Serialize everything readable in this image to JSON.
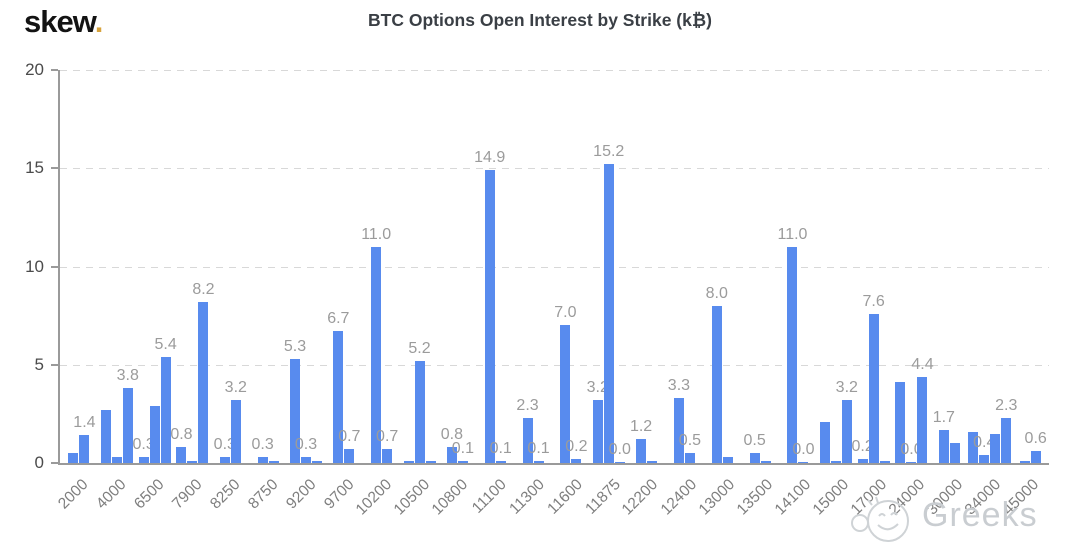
{
  "header": {
    "logo_text": "skew",
    "logo_dot": ".",
    "title": "BTC Options Open Interest by Strike (k₿)"
  },
  "watermark": {
    "text": "Greeks",
    "icon": "smiley-emoji"
  },
  "colors": {
    "bar": "#588bee",
    "grid": "#d8d8d8",
    "axis": "#9a9a9a",
    "value_label": "#9b9b9b",
    "x_tick_label": "#7e7e7e",
    "y_tick_label": "#4b4b4b",
    "title": "#3a3f45",
    "logo_dot": "#d7a33c",
    "watermark": "#c9cdd1"
  },
  "chart_data": {
    "type": "bar",
    "title": "BTC Options Open Interest by Strike (k₿)",
    "ylim": [
      0,
      20
    ],
    "yticks": [
      0,
      5,
      10,
      15,
      20
    ],
    "grid": "horizontal-dashed",
    "legend": "none",
    "categories": [
      "2000",
      "4000",
      "6500",
      "7900",
      "8250",
      "8750",
      "9200",
      "9700",
      "10200",
      "10500",
      "10800",
      "11100",
      "11300",
      "11600",
      "11875",
      "12200",
      "12400",
      "13000",
      "13500",
      "14100",
      "15000",
      "17000",
      "24000",
      "30000",
      "34000",
      "45000"
    ],
    "groups": [
      {
        "strike": "2000",
        "bars": [
          {
            "value": 0.5
          },
          {
            "value": 1.4,
            "label": "1.4"
          }
        ]
      },
      {
        "strike": "4000",
        "bars": [
          {
            "value": 2.7
          },
          {
            "value": 0.3
          },
          {
            "value": 3.8,
            "label": "3.8"
          }
        ]
      },
      {
        "strike": "6500",
        "bars": [
          {
            "value": 0.3,
            "label": "0.3"
          },
          {
            "value": 2.9
          },
          {
            "value": 5.4,
            "label": "5.4"
          }
        ]
      },
      {
        "strike": "7900",
        "bars": [
          {
            "value": 0.8,
            "label": "0.8"
          },
          {
            "value": 0.1
          },
          {
            "value": 8.2,
            "label": "8.2"
          }
        ]
      },
      {
        "strike": "8250",
        "bars": [
          {
            "value": 0.3,
            "label": "0.3"
          },
          {
            "value": 3.2,
            "label": "3.2"
          }
        ]
      },
      {
        "strike": "8750",
        "bars": [
          {
            "value": 0.3,
            "label": "0.3"
          },
          {
            "value": 0.1
          }
        ]
      },
      {
        "strike": "9200",
        "bars": [
          {
            "value": 5.3,
            "label": "5.3"
          },
          {
            "value": 0.3,
            "label": "0.3"
          },
          {
            "value": 0.1
          }
        ]
      },
      {
        "strike": "9700",
        "bars": [
          {
            "value": 6.7,
            "label": "6.7"
          },
          {
            "value": 0.7,
            "label": "0.7"
          }
        ]
      },
      {
        "strike": "10200",
        "bars": [
          {
            "value": 11.0,
            "label": "11.0"
          },
          {
            "value": 0.7,
            "label": "0.7"
          }
        ]
      },
      {
        "strike": "10500",
        "bars": [
          {
            "value": 0.1
          },
          {
            "value": 5.2,
            "label": "5.2"
          },
          {
            "value": 0.1
          }
        ]
      },
      {
        "strike": "10800",
        "bars": [
          {
            "value": 0.8,
            "label": "0.8"
          },
          {
            "value": 0.1,
            "label": "0.1"
          }
        ]
      },
      {
        "strike": "11100",
        "bars": [
          {
            "value": 14.9,
            "label": "14.9"
          },
          {
            "value": 0.1,
            "label": "0.1"
          }
        ]
      },
      {
        "strike": "11300",
        "bars": [
          {
            "value": 2.3,
            "label": "2.3"
          },
          {
            "value": 0.1,
            "label": "0.1"
          }
        ]
      },
      {
        "strike": "11600",
        "bars": [
          {
            "value": 7.0,
            "label": "7.0"
          },
          {
            "value": 0.2,
            "label": "0.2"
          }
        ]
      },
      {
        "strike": "11875",
        "bars": [
          {
            "value": 3.2,
            "label": "3.2"
          },
          {
            "value": 15.2,
            "label": "15.2"
          },
          {
            "value": 0.0,
            "label": "0.0"
          }
        ]
      },
      {
        "strike": "12200",
        "bars": [
          {
            "value": 1.2,
            "label": "1.2"
          },
          {
            "value": 0.1
          }
        ]
      },
      {
        "strike": "12400",
        "bars": [
          {
            "value": 3.3,
            "label": "3.3"
          },
          {
            "value": 0.5,
            "label": "0.5"
          }
        ]
      },
      {
        "strike": "13000",
        "bars": [
          {
            "value": 8.0,
            "label": "8.0"
          },
          {
            "value": 0.3
          }
        ]
      },
      {
        "strike": "13500",
        "bars": [
          {
            "value": 0.5,
            "label": "0.5"
          },
          {
            "value": 0.1
          }
        ]
      },
      {
        "strike": "14100",
        "bars": [
          {
            "value": 11.0,
            "label": "11.0"
          },
          {
            "value": 0.0,
            "label": "0.0"
          }
        ]
      },
      {
        "strike": "15000",
        "bars": [
          {
            "value": 2.1
          },
          {
            "value": 0.1
          },
          {
            "value": 3.2,
            "label": "3.2"
          }
        ]
      },
      {
        "strike": "17000",
        "bars": [
          {
            "value": 0.2,
            "label": "0.2"
          },
          {
            "value": 7.6,
            "label": "7.6"
          },
          {
            "value": 0.1
          }
        ]
      },
      {
        "strike": "24000",
        "bars": [
          {
            "value": 4.1
          },
          {
            "value": 0.0,
            "label": "0.0"
          },
          {
            "value": 4.4,
            "label": "4.4"
          }
        ]
      },
      {
        "strike": "30000",
        "bars": [
          {
            "value": 1.7,
            "label": "1.7"
          },
          {
            "value": 1.0
          }
        ]
      },
      {
        "strike": "34000",
        "bars": [
          {
            "value": 1.6
          },
          {
            "value": 0.4,
            "label": "0.4"
          },
          {
            "value": 1.5
          },
          {
            "value": 2.3,
            "label": "2.3"
          }
        ]
      },
      {
        "strike": "45000",
        "bars": [
          {
            "value": 0.1
          },
          {
            "value": 0.6,
            "label": "0.6"
          }
        ]
      }
    ]
  }
}
